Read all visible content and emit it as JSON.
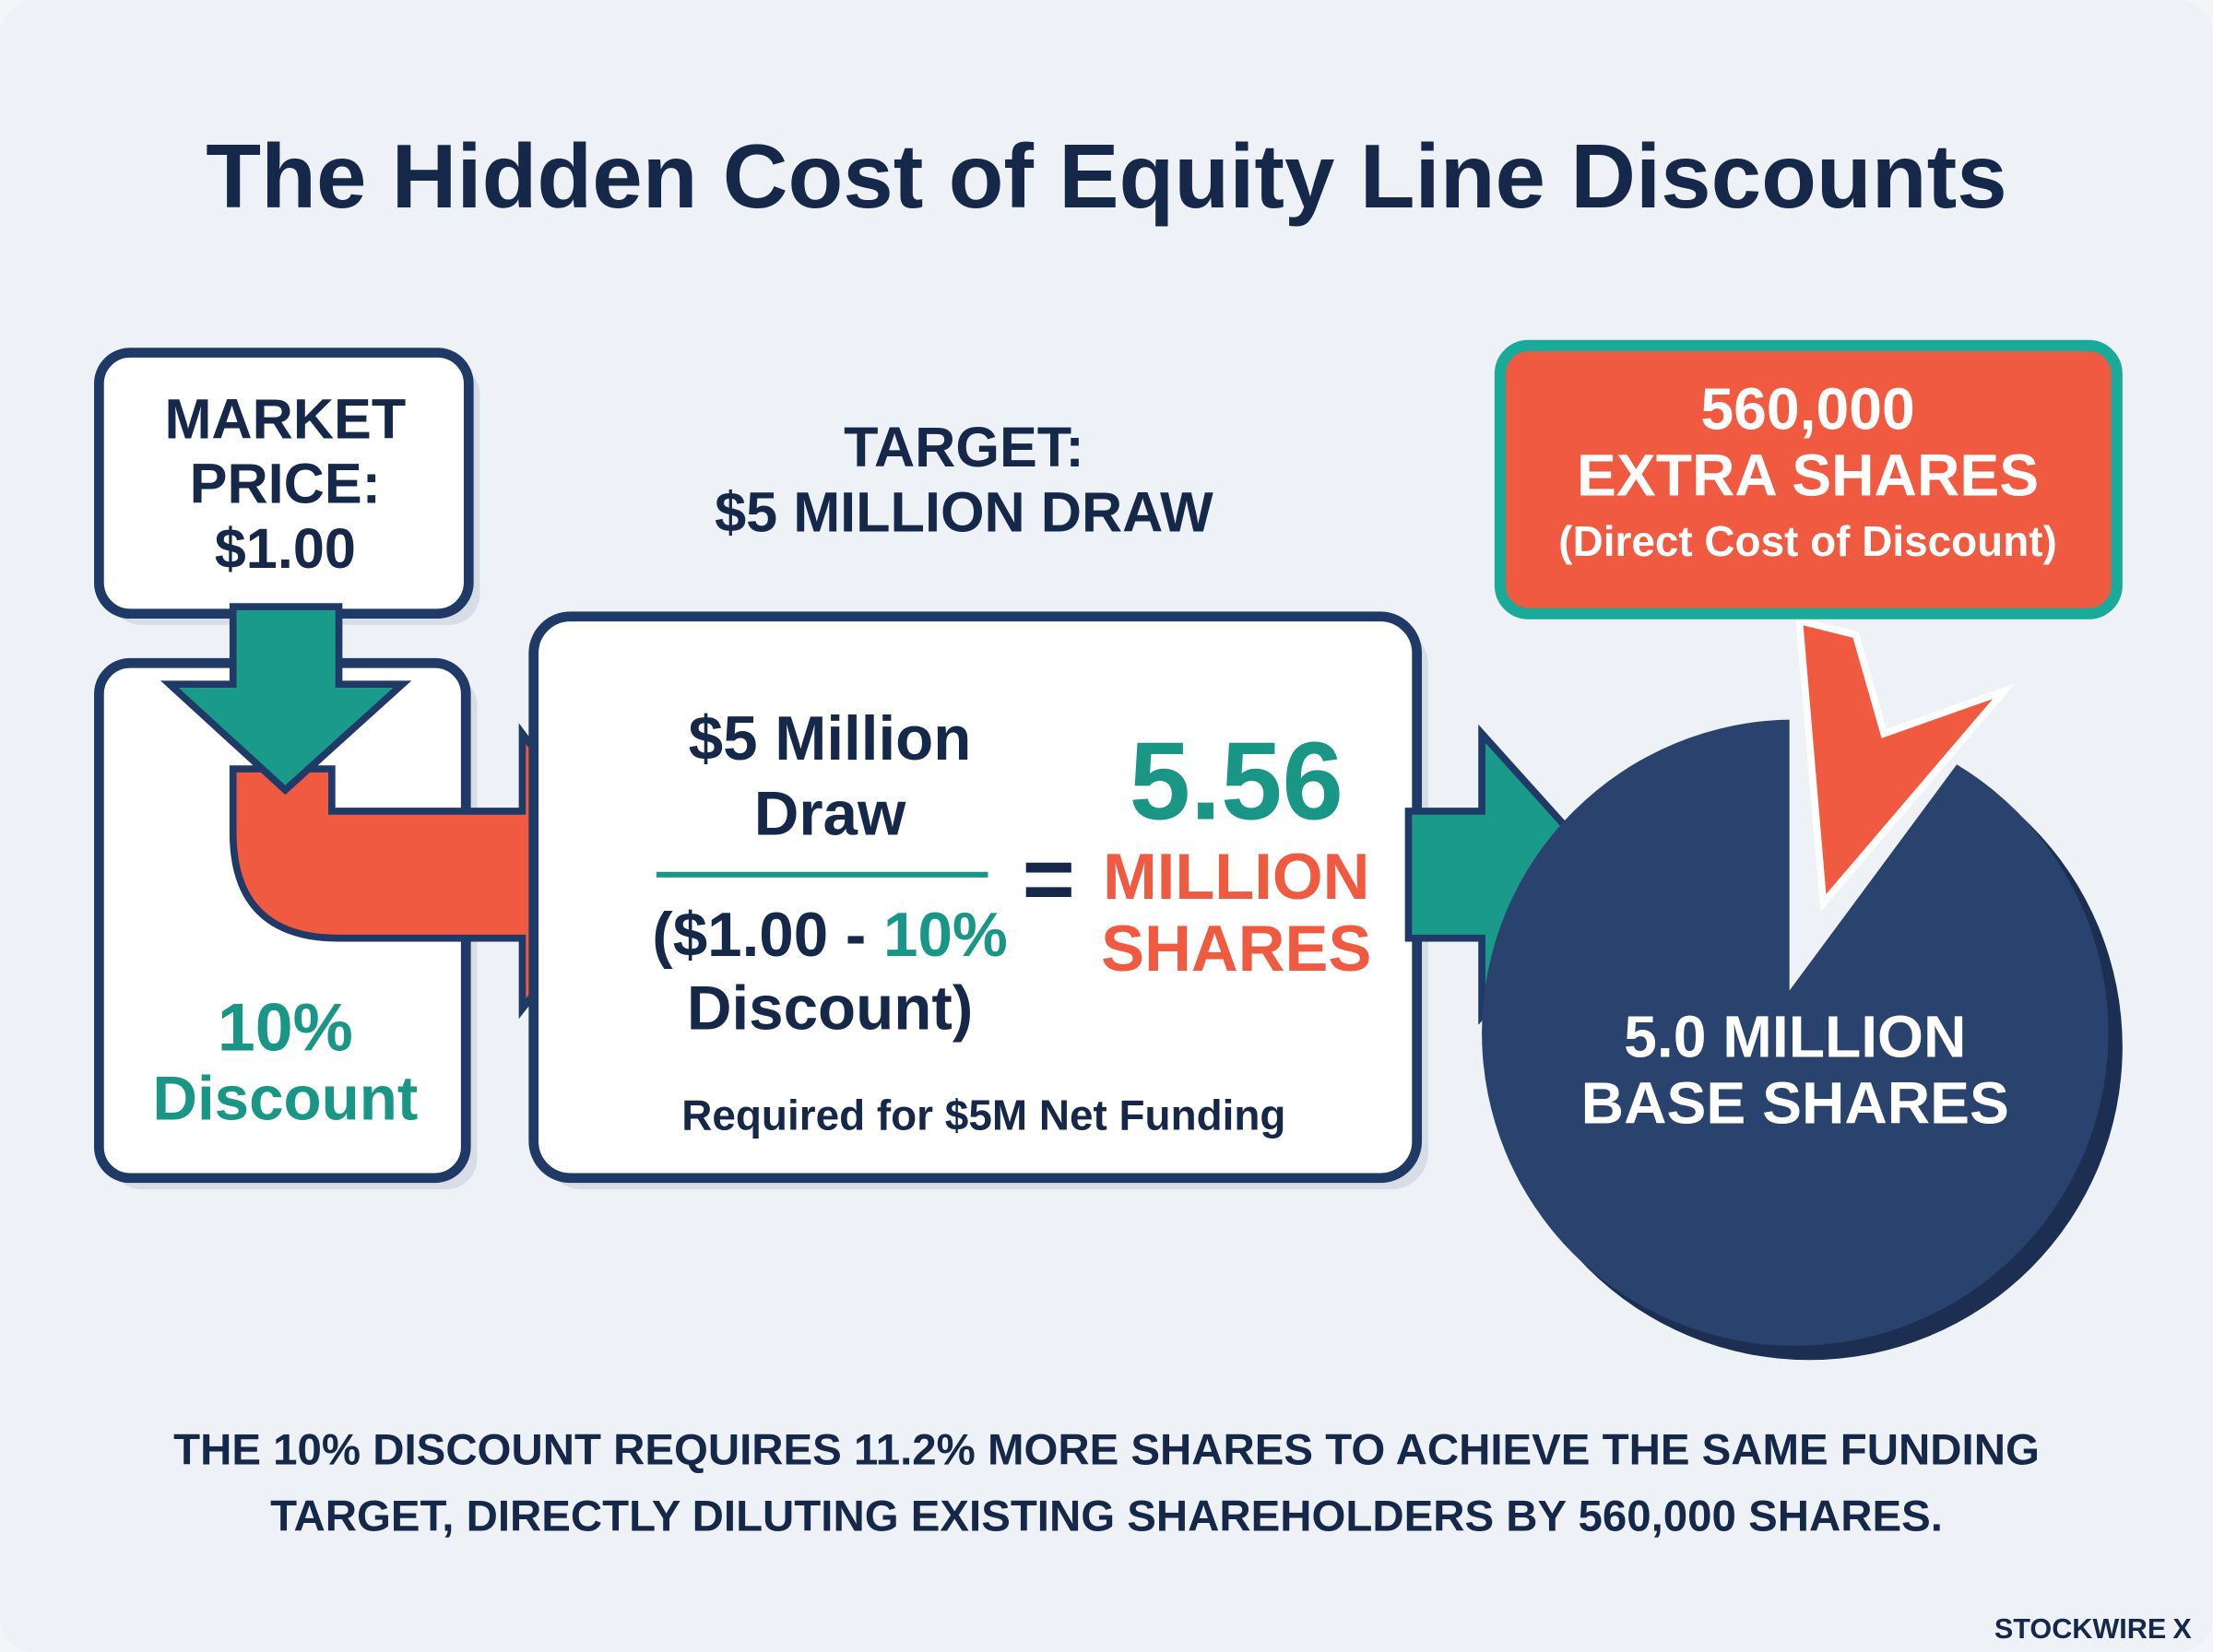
{
  "title": "The Hidden Cost of Equity Line Discounts",
  "market_box": {
    "lines": [
      "MARKET",
      "PRICE:",
      "$1.00"
    ]
  },
  "discount": {
    "lines": [
      "10%",
      "Discount"
    ]
  },
  "target": {
    "lines": [
      "TARGET:",
      "$5 MILLION DRAW"
    ]
  },
  "formula": {
    "numerator": [
      "$5 Million",
      "Draw"
    ],
    "denominator": [
      [
        "($1.00 -",
        "10%"
      ],
      [
        "Discount)"
      ]
    ],
    "operator": "=",
    "result_value": "5.56",
    "result_unit": [
      "MILLION",
      "SHARES"
    ],
    "note": "Required for $5M Net Funding"
  },
  "callout": {
    "lines": [
      "560,000",
      "EXTRA SHARES",
      "(Direct Cost of Discount)"
    ]
  },
  "pie_label": [
    "5.0 MILLION",
    "BASE SHARES"
  ],
  "footer": [
    "THE 10% DISCOUNT REQUIRES 11.2% MORE SHARES TO ACHIEVE THE SAME FUNDING",
    "TARGET, DIRECTLY DILUTING EXISTING SHAREHOLDERS BY 560,000 SHARES."
  ],
  "brand": {
    "name": "STOCKWIRE",
    "mark": "X"
  }
}
